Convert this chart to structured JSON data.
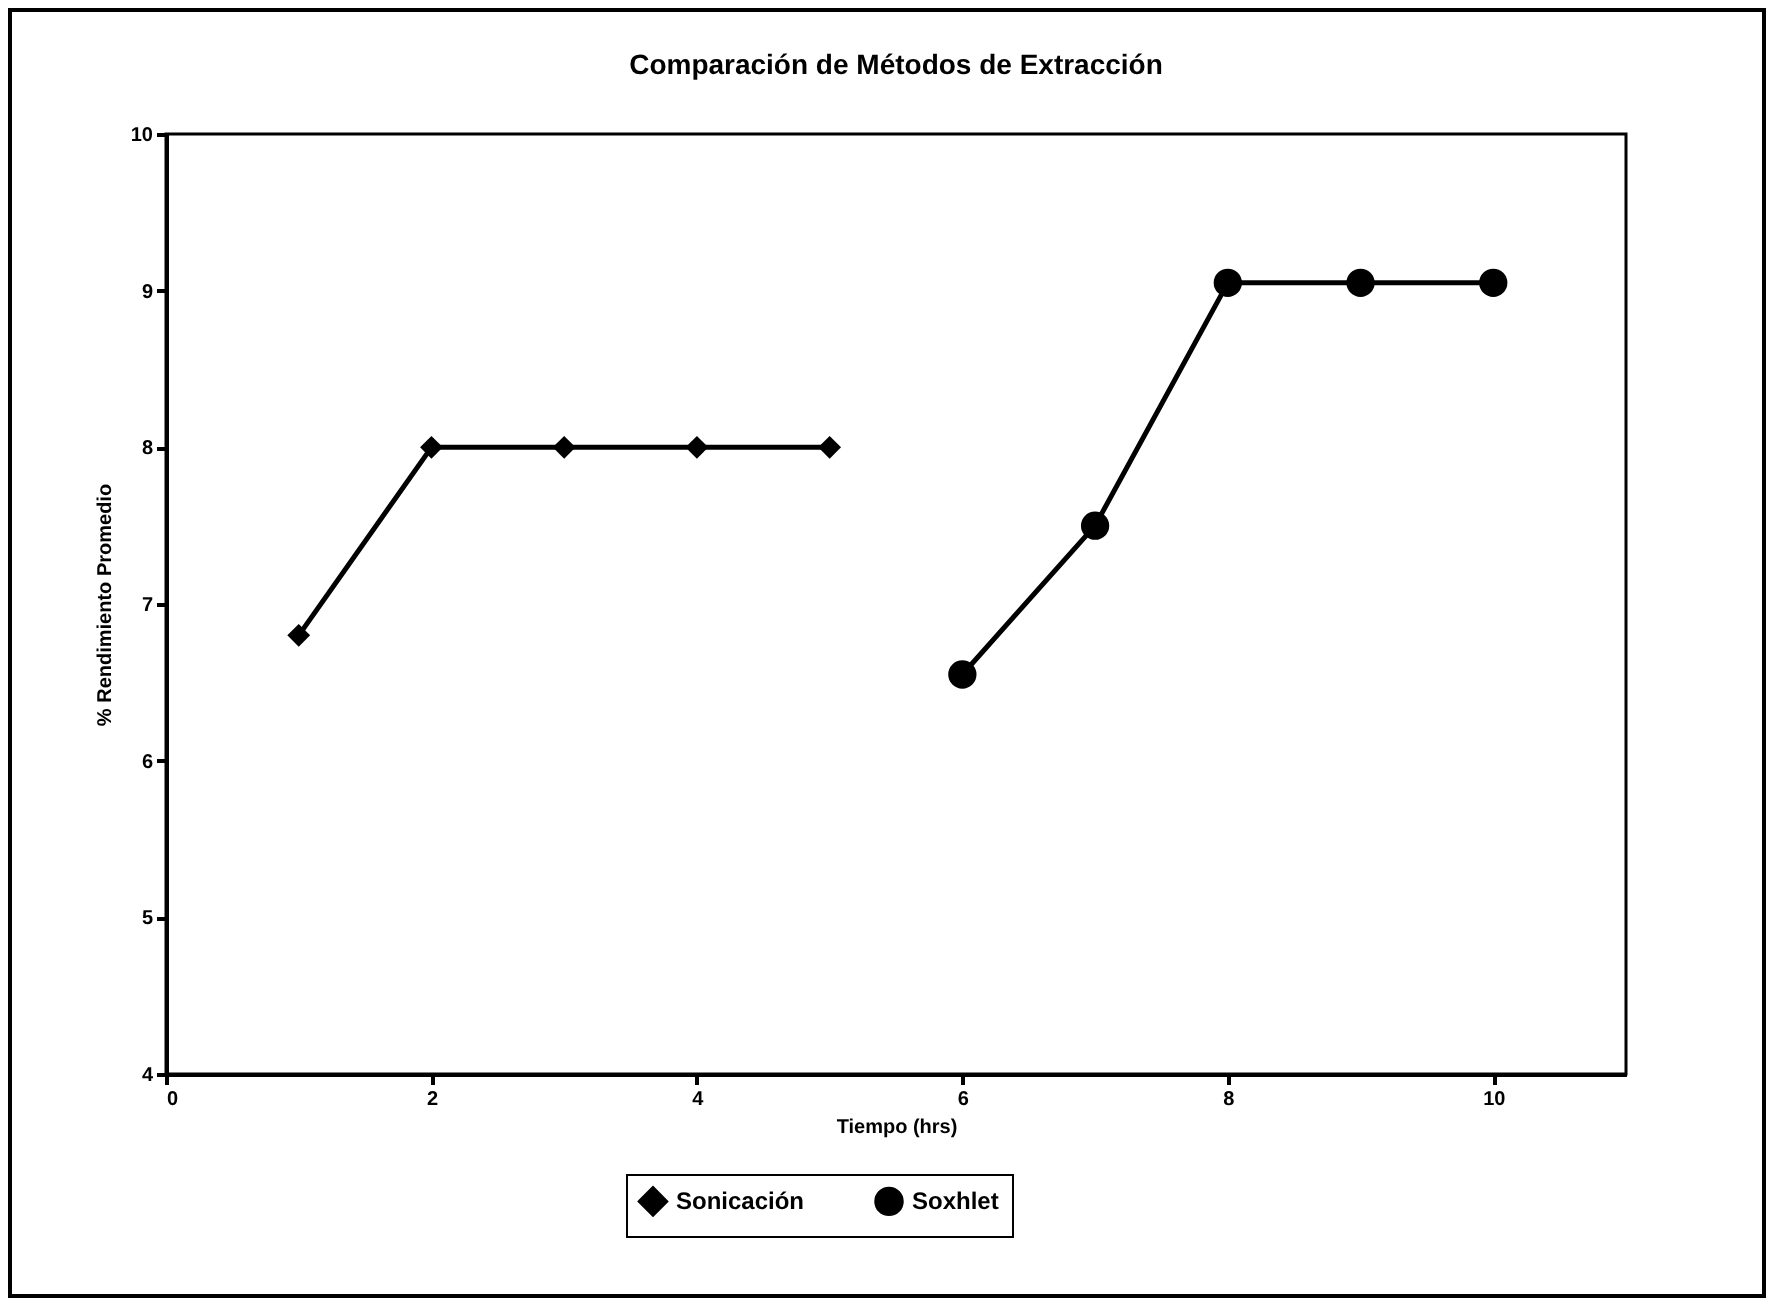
{
  "chart_data": {
    "type": "line",
    "title": "Comparación de Métodos de Extracción",
    "xlabel": "Tiempo (hrs)",
    "ylabel": "% Rendimiento Promedio",
    "series": [
      {
        "name": "Sonicación",
        "color": "#000000",
        "marker": "diamond",
        "x": [
          1,
          2,
          3,
          4,
          5
        ],
        "values": [
          6.8,
          8.0,
          8.0,
          8.0,
          8.0
        ]
      },
      {
        "name": "Soxhlet",
        "color": "#000000",
        "marker": "circle",
        "x": [
          6,
          7,
          8,
          9,
          10
        ],
        "values": [
          6.55,
          7.5,
          9.05,
          9.05,
          9.05
        ]
      }
    ],
    "xlim": [
      0,
      11
    ],
    "xticks": [
      0,
      2,
      4,
      6,
      8,
      10
    ],
    "ylim": [
      4,
      10
    ],
    "yticks": [
      4,
      5,
      6,
      7,
      8,
      9,
      10
    ],
    "grid": false,
    "legend": "bottom",
    "line_style": "solid"
  }
}
